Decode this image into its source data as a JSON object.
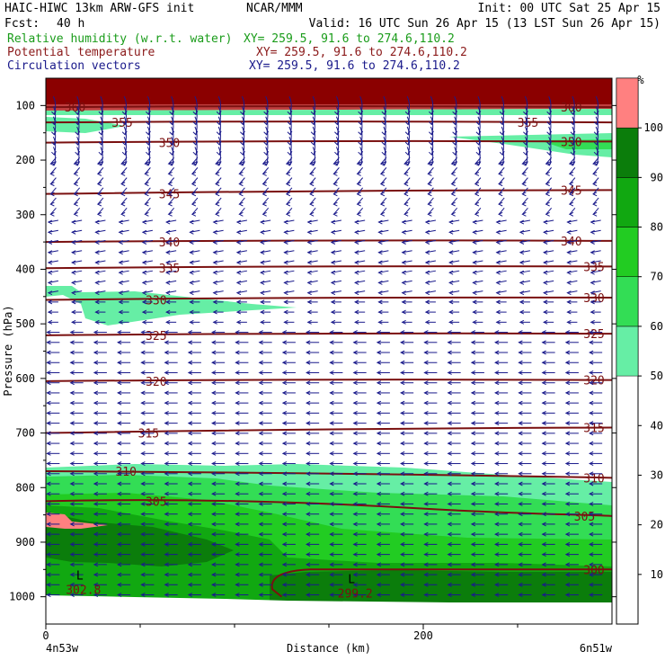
{
  "header": {
    "model_line": "HAIC-HIWC 13km ARW-GFS init",
    "org": "NCAR/MMM",
    "init": "Init: 00 UTC Sat 25 Apr 15",
    "fcst_label": "Fcst:",
    "fcst_value": "40 h",
    "valid": "Valid: 16 UTC Sun 26 Apr 15 (13 LST Sun 26 Apr 15)",
    "fields": [
      {
        "label": "Relative humidity (w.r.t. water)",
        "xy": "XY= 259.5, 91.6 to 274.6,110.2",
        "color": "#1a9c1a"
      },
      {
        "label": "Potential temperature",
        "xy": "XY= 259.5, 91.6 to 274.6,110.2",
        "color": "#8b1a1a"
      },
      {
        "label": "Circulation vectors",
        "xy": "XY= 259.5, 91.6 to 274.6,110.2",
        "color": "#1a1a8b"
      }
    ]
  },
  "colors": {
    "theta": "#7a1010",
    "vectors": "#1a1a8b",
    "rh_100": "#8b0000"
  },
  "chart_data": {
    "type": "heatmap",
    "xlabel": "Distance (km)",
    "ylabel": "Pressure (hPa)",
    "x_range": [
      0,
      300
    ],
    "y_range": [
      1050,
      50
    ],
    "x_ticks": [
      {
        "value": 0,
        "label": "0"
      },
      {
        "value": 200,
        "label": "200"
      }
    ],
    "y_ticks": [
      100,
      200,
      300,
      400,
      500,
      600,
      700,
      800,
      900,
      1000
    ],
    "x_endpoints": {
      "left": "4n53w",
      "right": "6n51w"
    },
    "colorbar": {
      "unit": "%",
      "ticks": [
        10,
        20,
        30,
        40,
        50,
        60,
        70,
        80,
        90,
        100
      ],
      "bins": [
        {
          "from": 50,
          "to": 60,
          "color": "#66eea5"
        },
        {
          "from": 60,
          "to": 70,
          "color": "#33dd55"
        },
        {
          "from": 70,
          "to": 80,
          "color": "#22cc22"
        },
        {
          "from": 80,
          "to": 90,
          "color": "#11a811"
        },
        {
          "from": 90,
          "to": 100,
          "color": "#0b7d0b"
        },
        {
          "from": 100,
          "to": 110,
          "color": "#ff8080"
        }
      ]
    },
    "theta_contours": [
      {
        "value": 360,
        "p_left": 103,
        "p_right": 103
      },
      {
        "value": 355,
        "p_left": 131,
        "p_right": 131
      },
      {
        "value": 350,
        "p_left": 168,
        "p_right": 166
      },
      {
        "value": 345,
        "p_left": 262,
        "p_right": 255
      },
      {
        "value": 340,
        "p_left": 350,
        "p_right": 348
      },
      {
        "value": 335,
        "p_left": 398,
        "p_right": 395
      },
      {
        "value": 330,
        "p_left": 456,
        "p_right": 452
      },
      {
        "value": 325,
        "p_left": 521,
        "p_right": 518
      },
      {
        "value": 320,
        "p_left": 605,
        "p_right": 603
      },
      {
        "value": 315,
        "p_left": 700,
        "p_right": 690
      },
      {
        "value": 310,
        "p_left": 770,
        "p_right": 782
      },
      {
        "value": 305,
        "p_left": 825,
        "p_right": 852
      },
      {
        "value": 300,
        "p_left": 980,
        "p_right": 950
      }
    ],
    "theta_labels": [
      {
        "text": "360",
        "x": 15,
        "p": 103
      },
      {
        "text": "355",
        "x": 40,
        "p": 131
      },
      {
        "text": "350",
        "x": 65,
        "p": 168
      },
      {
        "text": "345",
        "x": 65,
        "p": 262
      },
      {
        "text": "340",
        "x": 65,
        "p": 350
      },
      {
        "text": "335",
        "x": 65,
        "p": 398
      },
      {
        "text": "330",
        "x": 58,
        "p": 456
      },
      {
        "text": "325",
        "x": 58,
        "p": 521
      },
      {
        "text": "320",
        "x": 58,
        "p": 605
      },
      {
        "text": "315",
        "x": 54,
        "p": 700
      },
      {
        "text": "310",
        "x": 42,
        "p": 770
      },
      {
        "text": "305",
        "x": 58,
        "p": 825
      },
      {
        "text": "360",
        "x": 278,
        "p": 103
      },
      {
        "text": "355",
        "x": 255,
        "p": 131
      },
      {
        "text": "350",
        "x": 278,
        "p": 166
      },
      {
        "text": "345",
        "x": 278,
        "p": 255
      },
      {
        "text": "340",
        "x": 278,
        "p": 348
      },
      {
        "text": "335",
        "x": 290,
        "p": 395
      },
      {
        "text": "330",
        "x": 290,
        "p": 452
      },
      {
        "text": "325",
        "x": 290,
        "p": 518
      },
      {
        "text": "320",
        "x": 290,
        "p": 603
      },
      {
        "text": "315",
        "x": 290,
        "p": 690
      },
      {
        "text": "310",
        "x": 290,
        "p": 782
      },
      {
        "text": "305",
        "x": 285,
        "p": 852
      },
      {
        "text": "300",
        "x": 290,
        "p": 950
      }
    ],
    "extrema": [
      {
        "symbol": "L",
        "value": "302.8",
        "x": 18,
        "p": 978
      },
      {
        "symbol": "L",
        "value": "299.2",
        "x": 162,
        "p": 985
      }
    ]
  }
}
